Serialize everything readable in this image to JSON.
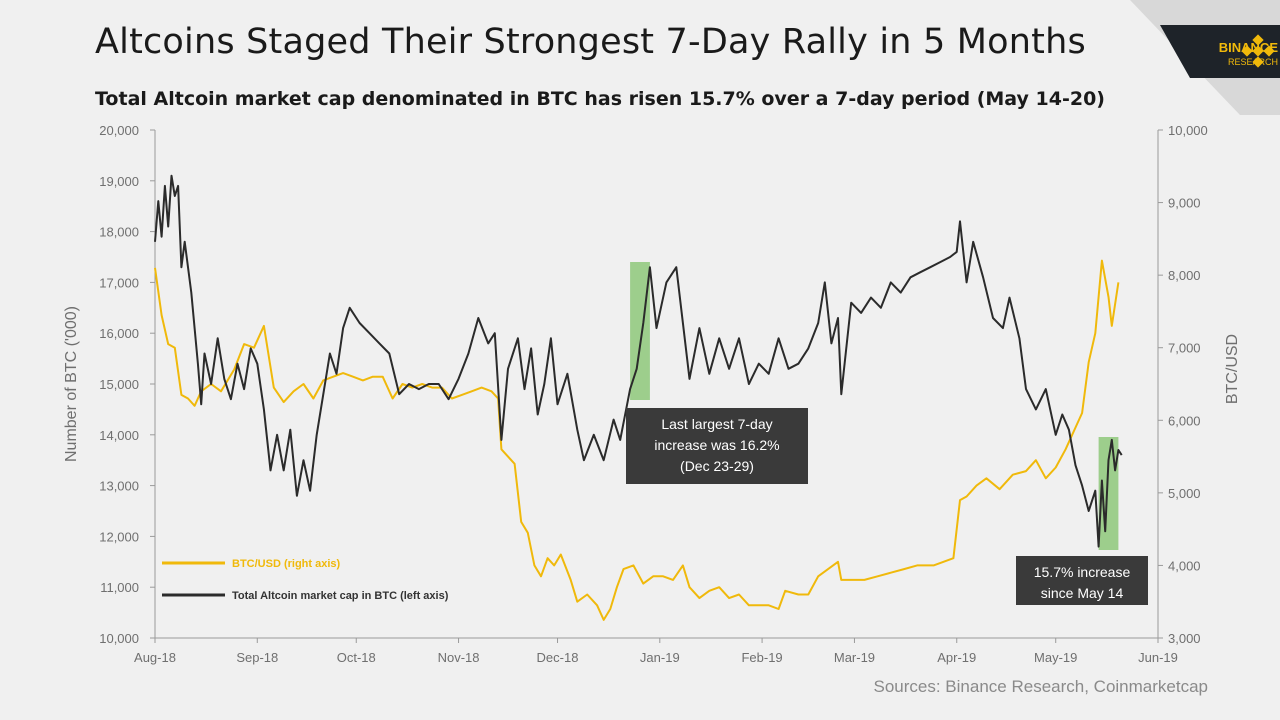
{
  "header": {
    "title": "Altcoins Staged Their Strongest 7-Day Rally in 5 Months",
    "subtitle": "Total Altcoin market cap denominated in BTC has risen 15.7% over a 7-day period (May 14-20)"
  },
  "brand": {
    "name": "BINANCE",
    "sub": "RESEARCH",
    "logo_color": "#f0b90b",
    "bg_color": "#1e2329"
  },
  "footer": {
    "source": "Sources: Binance Research, Coinmarketcap"
  },
  "chart_data": {
    "type": "line",
    "x_labels": [
      "Aug-18",
      "Sep-18",
      "Oct-18",
      "Nov-18",
      "Dec-18",
      "Jan-19",
      "Feb-19",
      "Mar-19",
      "Apr-19",
      "May-19",
      "Jun-19"
    ],
    "x_range": [
      "2018-08-01",
      "2019-06-01"
    ],
    "ylabel_left": "Number of BTC ('000)",
    "ylabel_right": "BTC/USD",
    "ylim_left": [
      10000,
      20000
    ],
    "ylim_right": [
      3000,
      10000
    ],
    "yticks_left": [
      "10,000",
      "11,000",
      "12,000",
      "13,000",
      "14,000",
      "15,000",
      "16,000",
      "17,000",
      "18,000",
      "19,000",
      "20,000"
    ],
    "yticks_right": [
      "3,000",
      "4,000",
      "5,000",
      "6,000",
      "7,000",
      "8,000",
      "9,000",
      "10,000"
    ],
    "grid": false,
    "legend_position": "bottom-left",
    "series": [
      {
        "name": "BTC/USD (right axis)",
        "axis": "right",
        "color": "#f0b90b",
        "points": [
          [
            "2018-08-01",
            8100
          ],
          [
            "2018-08-03",
            7450
          ],
          [
            "2018-08-05",
            7050
          ],
          [
            "2018-08-07",
            7000
          ],
          [
            "2018-08-09",
            6350
          ],
          [
            "2018-08-11",
            6300
          ],
          [
            "2018-08-13",
            6200
          ],
          [
            "2018-08-15",
            6400
          ],
          [
            "2018-08-18",
            6500
          ],
          [
            "2018-08-21",
            6400
          ],
          [
            "2018-08-25",
            6700
          ],
          [
            "2018-08-28",
            7050
          ],
          [
            "2018-08-31",
            7000
          ],
          [
            "2018-09-03",
            7300
          ],
          [
            "2018-09-06",
            6450
          ],
          [
            "2018-09-09",
            6250
          ],
          [
            "2018-09-12",
            6400
          ],
          [
            "2018-09-15",
            6500
          ],
          [
            "2018-09-18",
            6300
          ],
          [
            "2018-09-21",
            6550
          ],
          [
            "2018-09-24",
            6600
          ],
          [
            "2018-09-27",
            6650
          ],
          [
            "2018-09-30",
            6600
          ],
          [
            "2018-10-03",
            6550
          ],
          [
            "2018-10-06",
            6600
          ],
          [
            "2018-10-09",
            6600
          ],
          [
            "2018-10-12",
            6300
          ],
          [
            "2018-10-15",
            6500
          ],
          [
            "2018-10-18",
            6450
          ],
          [
            "2018-10-21",
            6500
          ],
          [
            "2018-10-24",
            6450
          ],
          [
            "2018-10-27",
            6450
          ],
          [
            "2018-10-30",
            6300
          ],
          [
            "2018-11-02",
            6350
          ],
          [
            "2018-11-05",
            6400
          ],
          [
            "2018-11-08",
            6450
          ],
          [
            "2018-11-11",
            6400
          ],
          [
            "2018-11-13",
            6300
          ],
          [
            "2018-11-14",
            5600
          ],
          [
            "2018-11-16",
            5500
          ],
          [
            "2018-11-18",
            5400
          ],
          [
            "2018-11-20",
            4600
          ],
          [
            "2018-11-22",
            4450
          ],
          [
            "2018-11-24",
            4000
          ],
          [
            "2018-11-26",
            3850
          ],
          [
            "2018-11-28",
            4100
          ],
          [
            "2018-11-30",
            4000
          ],
          [
            "2018-12-02",
            4150
          ],
          [
            "2018-12-05",
            3800
          ],
          [
            "2018-12-07",
            3500
          ],
          [
            "2018-12-10",
            3600
          ],
          [
            "2018-12-13",
            3450
          ],
          [
            "2018-12-15",
            3250
          ],
          [
            "2018-12-17",
            3400
          ],
          [
            "2018-12-19",
            3700
          ],
          [
            "2018-12-21",
            3950
          ],
          [
            "2018-12-24",
            4000
          ],
          [
            "2018-12-27",
            3750
          ],
          [
            "2018-12-30",
            3850
          ],
          [
            "2019-01-02",
            3850
          ],
          [
            "2019-01-05",
            3800
          ],
          [
            "2019-01-08",
            4000
          ],
          [
            "2019-01-10",
            3700
          ],
          [
            "2019-01-13",
            3550
          ],
          [
            "2019-01-16",
            3650
          ],
          [
            "2019-01-19",
            3700
          ],
          [
            "2019-01-22",
            3550
          ],
          [
            "2019-01-25",
            3600
          ],
          [
            "2019-01-28",
            3450
          ],
          [
            "2019-01-31",
            3450
          ],
          [
            "2019-02-03",
            3450
          ],
          [
            "2019-02-06",
            3400
          ],
          [
            "2019-02-08",
            3650
          ],
          [
            "2019-02-12",
            3600
          ],
          [
            "2019-02-15",
            3600
          ],
          [
            "2019-02-18",
            3850
          ],
          [
            "2019-02-21",
            3950
          ],
          [
            "2019-02-24",
            4050
          ],
          [
            "2019-02-25",
            3800
          ],
          [
            "2019-02-28",
            3800
          ],
          [
            "2019-03-04",
            3800
          ],
          [
            "2019-03-08",
            3850
          ],
          [
            "2019-03-12",
            3900
          ],
          [
            "2019-03-16",
            3950
          ],
          [
            "2019-03-20",
            4000
          ],
          [
            "2019-03-25",
            4000
          ],
          [
            "2019-03-28",
            4050
          ],
          [
            "2019-03-31",
            4100
          ],
          [
            "2019-04-02",
            4900
          ],
          [
            "2019-04-04",
            4950
          ],
          [
            "2019-04-07",
            5100
          ],
          [
            "2019-04-10",
            5200
          ],
          [
            "2019-04-14",
            5050
          ],
          [
            "2019-04-18",
            5250
          ],
          [
            "2019-04-22",
            5300
          ],
          [
            "2019-04-25",
            5450
          ],
          [
            "2019-04-28",
            5200
          ],
          [
            "2019-05-01",
            5350
          ],
          [
            "2019-05-04",
            5600
          ],
          [
            "2019-05-07",
            5900
          ],
          [
            "2019-05-09",
            6100
          ],
          [
            "2019-05-11",
            6800
          ],
          [
            "2019-05-13",
            7200
          ],
          [
            "2019-05-15",
            8200
          ],
          [
            "2019-05-17",
            7700
          ],
          [
            "2019-05-18",
            7300
          ],
          [
            "2019-05-20",
            7900
          ]
        ]
      },
      {
        "name": "Total Altcoin market cap in BTC (left axis)",
        "axis": "left",
        "color": "#2b2b2b",
        "points": [
          [
            "2018-08-01",
            17800
          ],
          [
            "2018-08-02",
            18600
          ],
          [
            "2018-08-03",
            17900
          ],
          [
            "2018-08-04",
            18900
          ],
          [
            "2018-08-05",
            18100
          ],
          [
            "2018-08-06",
            19100
          ],
          [
            "2018-08-07",
            18700
          ],
          [
            "2018-08-08",
            18900
          ],
          [
            "2018-08-09",
            17300
          ],
          [
            "2018-08-10",
            17800
          ],
          [
            "2018-08-12",
            16800
          ],
          [
            "2018-08-14",
            15400
          ],
          [
            "2018-08-15",
            14600
          ],
          [
            "2018-08-16",
            15600
          ],
          [
            "2018-08-18",
            15000
          ],
          [
            "2018-08-20",
            15900
          ],
          [
            "2018-08-22",
            15100
          ],
          [
            "2018-08-24",
            14700
          ],
          [
            "2018-08-26",
            15400
          ],
          [
            "2018-08-28",
            14900
          ],
          [
            "2018-08-30",
            15700
          ],
          [
            "2018-09-01",
            15400
          ],
          [
            "2018-09-03",
            14500
          ],
          [
            "2018-09-05",
            13300
          ],
          [
            "2018-09-07",
            14000
          ],
          [
            "2018-09-09",
            13300
          ],
          [
            "2018-09-11",
            14100
          ],
          [
            "2018-09-13",
            12800
          ],
          [
            "2018-09-15",
            13500
          ],
          [
            "2018-09-17",
            12900
          ],
          [
            "2018-09-19",
            14000
          ],
          [
            "2018-09-21",
            14800
          ],
          [
            "2018-09-23",
            15600
          ],
          [
            "2018-09-25",
            15200
          ],
          [
            "2018-09-27",
            16100
          ],
          [
            "2018-09-29",
            16500
          ],
          [
            "2018-10-02",
            16200
          ],
          [
            "2018-10-05",
            16000
          ],
          [
            "2018-10-08",
            15800
          ],
          [
            "2018-10-11",
            15600
          ],
          [
            "2018-10-14",
            14800
          ],
          [
            "2018-10-17",
            15000
          ],
          [
            "2018-10-20",
            14900
          ],
          [
            "2018-10-23",
            15000
          ],
          [
            "2018-10-26",
            15000
          ],
          [
            "2018-10-29",
            14700
          ],
          [
            "2018-11-01",
            15100
          ],
          [
            "2018-11-04",
            15600
          ],
          [
            "2018-11-07",
            16300
          ],
          [
            "2018-11-10",
            15800
          ],
          [
            "2018-11-12",
            16000
          ],
          [
            "2018-11-14",
            13900
          ],
          [
            "2018-11-16",
            15300
          ],
          [
            "2018-11-19",
            15900
          ],
          [
            "2018-11-21",
            14900
          ],
          [
            "2018-11-23",
            15700
          ],
          [
            "2018-11-25",
            14400
          ],
          [
            "2018-11-27",
            15000
          ],
          [
            "2018-11-29",
            15900
          ],
          [
            "2018-12-01",
            14600
          ],
          [
            "2018-12-04",
            15200
          ],
          [
            "2018-12-07",
            14100
          ],
          [
            "2018-12-09",
            13500
          ],
          [
            "2018-12-12",
            14000
          ],
          [
            "2018-12-15",
            13500
          ],
          [
            "2018-12-18",
            14300
          ],
          [
            "2018-12-20",
            13900
          ],
          [
            "2018-12-23",
            14900
          ],
          [
            "2018-12-25",
            15300
          ],
          [
            "2018-12-27",
            16200
          ],
          [
            "2018-12-29",
            17300
          ],
          [
            "2018-12-31",
            16100
          ],
          [
            "2019-01-03",
            17000
          ],
          [
            "2019-01-06",
            17300
          ],
          [
            "2019-01-08",
            16200
          ],
          [
            "2019-01-10",
            15100
          ],
          [
            "2019-01-13",
            16100
          ],
          [
            "2019-01-16",
            15200
          ],
          [
            "2019-01-19",
            15900
          ],
          [
            "2019-01-22",
            15300
          ],
          [
            "2019-01-25",
            15900
          ],
          [
            "2019-01-28",
            15000
          ],
          [
            "2019-01-31",
            15400
          ],
          [
            "2019-02-03",
            15200
          ],
          [
            "2019-02-06",
            15900
          ],
          [
            "2019-02-09",
            15300
          ],
          [
            "2019-02-12",
            15400
          ],
          [
            "2019-02-15",
            15700
          ],
          [
            "2019-02-18",
            16200
          ],
          [
            "2019-02-20",
            17000
          ],
          [
            "2019-02-22",
            15800
          ],
          [
            "2019-02-24",
            16300
          ],
          [
            "2019-02-25",
            14800
          ],
          [
            "2019-02-28",
            16600
          ],
          [
            "2019-03-03",
            16400
          ],
          [
            "2019-03-06",
            16700
          ],
          [
            "2019-03-09",
            16500
          ],
          [
            "2019-03-12",
            17000
          ],
          [
            "2019-03-15",
            16800
          ],
          [
            "2019-03-18",
            17100
          ],
          [
            "2019-03-21",
            17200
          ],
          [
            "2019-03-24",
            17300
          ],
          [
            "2019-03-27",
            17400
          ],
          [
            "2019-03-30",
            17500
          ],
          [
            "2019-04-01",
            17600
          ],
          [
            "2019-04-02",
            18200
          ],
          [
            "2019-04-04",
            17000
          ],
          [
            "2019-04-06",
            17800
          ],
          [
            "2019-04-09",
            17100
          ],
          [
            "2019-04-12",
            16300
          ],
          [
            "2019-04-15",
            16100
          ],
          [
            "2019-04-17",
            16700
          ],
          [
            "2019-04-20",
            15900
          ],
          [
            "2019-04-22",
            14900
          ],
          [
            "2019-04-25",
            14500
          ],
          [
            "2019-04-28",
            14900
          ],
          [
            "2019-05-01",
            14000
          ],
          [
            "2019-05-03",
            14400
          ],
          [
            "2019-05-05",
            14100
          ],
          [
            "2019-05-07",
            13400
          ],
          [
            "2019-05-09",
            13000
          ],
          [
            "2019-05-11",
            12500
          ],
          [
            "2019-05-13",
            12900
          ],
          [
            "2019-05-14",
            11800
          ],
          [
            "2019-05-15",
            13100
          ],
          [
            "2019-05-16",
            12100
          ],
          [
            "2019-05-17",
            13500
          ],
          [
            "2019-05-18",
            13900
          ],
          [
            "2019-05-19",
            13300
          ],
          [
            "2019-05-20",
            13700
          ],
          [
            "2019-05-21",
            13600
          ]
        ]
      }
    ],
    "highlights": [
      {
        "from": "2018-12-23",
        "to": "2018-12-29",
        "color": "#8ec87a"
      },
      {
        "from": "2019-05-14",
        "to": "2019-05-20",
        "color": "#8ec87a"
      }
    ],
    "annotations": [
      {
        "text_lines": [
          "Last largest 7-day",
          "increase was 16.2%",
          "(Dec 23-29)"
        ]
      },
      {
        "text_lines": [
          "15.7% increase",
          "since May 14"
        ]
      }
    ]
  }
}
